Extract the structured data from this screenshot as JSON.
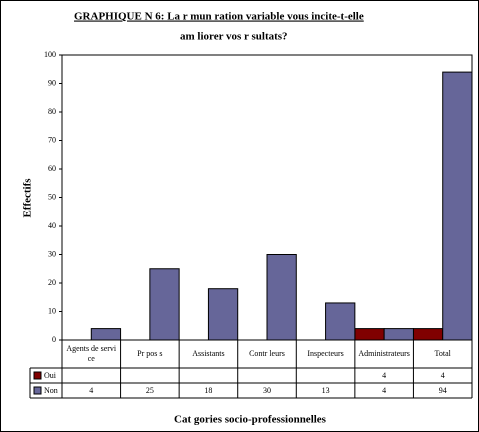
{
  "chart_data": {
    "type": "bar",
    "title_lines": [
      "GRAPHIQUE N  6: La r mun ration variable vous incite-t-elle",
      "am liorer vos r sultats?"
    ],
    "y_label": "Effectifs",
    "x_label": "Cat gories socio-professionnelles",
    "categories": [
      "Agents de service",
      "Pr pos s",
      "Assistants",
      "Contr leurs",
      "Inspecteurs",
      "Administrateurs",
      "Total"
    ],
    "series": [
      {
        "name": "Oui",
        "color": "#800000",
        "values": [
          null,
          null,
          null,
          null,
          null,
          4,
          4
        ]
      },
      {
        "name": "Non",
        "color": "#666699",
        "values": [
          4,
          25,
          18,
          30,
          13,
          4,
          94
        ]
      }
    ],
    "ylim": [
      0,
      100
    ],
    "yticks": [
      0,
      10,
      20,
      30,
      40,
      50,
      60,
      70,
      80,
      90,
      100
    ],
    "grid": false
  }
}
